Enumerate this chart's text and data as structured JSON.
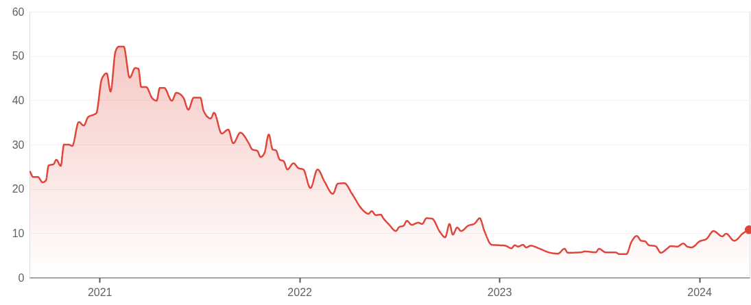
{
  "chart_data": {
    "type": "area",
    "xlim": [
      "2020-08-26",
      "2024-04-02"
    ],
    "xticks": [
      "2021",
      "2022",
      "2023",
      "2024"
    ],
    "ylim": [
      0,
      60
    ],
    "yticks": [
      0,
      10,
      20,
      30,
      40,
      50,
      60
    ],
    "grid": "y",
    "series": [
      {
        "color": "#e0453a",
        "x": [
          "2020-08-27",
          "2020-09-02",
          "2020-09-10",
          "2020-09-19",
          "2020-09-25",
          "2020-09-30",
          "2020-10-09",
          "2020-10-14",
          "2020-10-22",
          "2020-10-28",
          "2020-11-06",
          "2020-11-12",
          "2020-11-24",
          "2020-12-03",
          "2020-12-11",
          "2020-12-22",
          "2020-12-26",
          "2021-01-05",
          "2021-01-14",
          "2021-01-21",
          "2021-01-30",
          "2021-02-05",
          "2021-02-14",
          "2021-02-25",
          "2021-03-07",
          "2021-03-13",
          "2021-03-18",
          "2021-03-27",
          "2021-04-07",
          "2021-04-15",
          "2021-04-21",
          "2021-04-29",
          "2021-05-13",
          "2021-05-21",
          "2021-06-03",
          "2021-06-12",
          "2021-06-22",
          "2021-07-04",
          "2021-07-10",
          "2021-07-23",
          "2021-07-29",
          "2021-08-12",
          "2021-08-24",
          "2021-09-02",
          "2021-09-15",
          "2021-09-30",
          "2021-10-07",
          "2021-10-16",
          "2021-10-22",
          "2021-10-29",
          "2021-11-06",
          "2021-11-13",
          "2021-11-19",
          "2021-11-26",
          "2021-12-03",
          "2021-12-10",
          "2021-12-21",
          "2021-12-30",
          "2022-01-08",
          "2022-01-21",
          "2022-02-03",
          "2022-02-16",
          "2022-03-03",
          "2022-03-12",
          "2022-03-24",
          "2022-04-07",
          "2022-04-24",
          "2022-05-07",
          "2022-05-13",
          "2022-05-20",
          "2022-05-30",
          "2022-06-02",
          "2022-06-14",
          "2022-06-26",
          "2022-07-02",
          "2022-07-10",
          "2022-07-16",
          "2022-07-25",
          "2022-08-06",
          "2022-08-13",
          "2022-08-21",
          "2022-08-31",
          "2022-09-15",
          "2022-09-24",
          "2022-10-02",
          "2022-10-08",
          "2022-10-16",
          "2022-10-23",
          "2022-11-05",
          "2022-11-17",
          "2022-11-26",
          "2022-12-05",
          "2022-12-18",
          "2022-12-31",
          "2023-01-12",
          "2023-01-23",
          "2023-01-29",
          "2023-02-04",
          "2023-02-13",
          "2023-02-19",
          "2023-02-27",
          "2023-03-16",
          "2023-04-01",
          "2023-04-18",
          "2023-04-30",
          "2023-05-06",
          "2023-05-30",
          "2023-06-06",
          "2023-06-26",
          "2023-07-02",
          "2023-07-14",
          "2023-08-01",
          "2023-08-08",
          "2023-08-21",
          "2023-08-30",
          "2023-09-09",
          "2023-09-17",
          "2023-09-24",
          "2023-10-01",
          "2023-10-13",
          "2023-10-23",
          "2023-11-03",
          "2023-11-10",
          "2023-11-22",
          "2023-12-03",
          "2023-12-10",
          "2023-12-18",
          "2024-01-02",
          "2024-01-14",
          "2024-01-27",
          "2024-02-12",
          "2024-02-19",
          "2024-03-05",
          "2024-03-21",
          "2024-04-01"
        ],
        "values": [
          24.0,
          22.7,
          22.7,
          21.5,
          21.9,
          25.3,
          25.6,
          26.6,
          25.2,
          30.0,
          30.0,
          29.7,
          35.1,
          34.3,
          36.2,
          36.8,
          37.1,
          44.8,
          46.1,
          42.0,
          51.0,
          52.1,
          52.1,
          45.1,
          47.3,
          47.1,
          43.0,
          43.0,
          40.5,
          39.9,
          42.8,
          42.8,
          39.9,
          41.7,
          40.6,
          37.9,
          40.6,
          40.6,
          37.6,
          35.9,
          37.2,
          32.5,
          33.4,
          30.3,
          32.7,
          30.4,
          28.9,
          28.6,
          27.2,
          28.1,
          32.3,
          28.9,
          28.7,
          26.6,
          26.3,
          24.4,
          25.8,
          24.7,
          24.4,
          20.2,
          24.4,
          21.6,
          18.9,
          21.2,
          21.3,
          18.9,
          15.6,
          14.4,
          15.0,
          14.1,
          14.2,
          13.6,
          11.9,
          10.5,
          11.4,
          11.7,
          12.8,
          11.9,
          12.4,
          12.1,
          13.4,
          13.3,
          10.2,
          9.1,
          12.1,
          9.7,
          11.3,
          10.5,
          11.7,
          12.2,
          13.4,
          10.4,
          7.4,
          7.3,
          7.2,
          6.6,
          7.3,
          7.0,
          7.4,
          6.8,
          7.2,
          6.5,
          5.7,
          5.4,
          6.5,
          5.6,
          5.7,
          5.9,
          5.7,
          6.5,
          5.7,
          5.7,
          5.3,
          5.3,
          8.0,
          9.4,
          8.3,
          8.2,
          7.3,
          7.1,
          5.6,
          6.5,
          7.1,
          7.0,
          7.7,
          7.0,
          6.8,
          8.2,
          8.7,
          10.5,
          9.3,
          9.9,
          8.3,
          10.0,
          10.8
        ]
      },
      {
        "type": "scatter",
        "color": "#e0453a",
        "marker": "circle",
        "x": [
          "2024-04-01"
        ],
        "values": [
          10.8
        ]
      }
    ]
  }
}
